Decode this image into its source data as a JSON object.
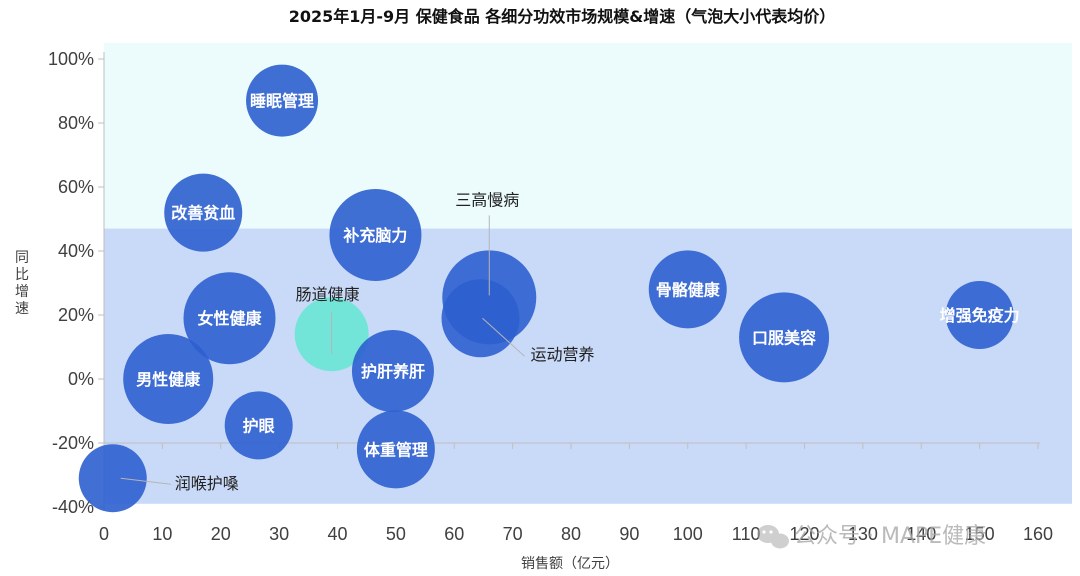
{
  "chart_data": {
    "type": "bubble",
    "title": "2025年1月-9月 保健食品 各细分功效市场规模&增速（气泡大小代表均价）",
    "xlabel": "销售额（亿元）",
    "ylabel": "同比增速",
    "xlim": [
      0,
      165
    ],
    "ylim": [
      -40,
      105
    ],
    "x_ticks": [
      0,
      10,
      20,
      30,
      40,
      50,
      60,
      70,
      80,
      90,
      100,
      110,
      120,
      130,
      140,
      150,
      160
    ],
    "y_ticks": [
      {
        "value": 100,
        "label": "100%"
      },
      {
        "value": 80,
        "label": "80%"
      },
      {
        "value": 60,
        "label": "60%"
      },
      {
        "value": 40,
        "label": "40%"
      },
      {
        "value": 20,
        "label": "20%"
      },
      {
        "value": 0,
        "label": "0%"
      },
      {
        "value": -20,
        "label": "-20%"
      },
      {
        "value": -40,
        "label": "-40%"
      }
    ],
    "bands": [
      {
        "from": 47,
        "to": 105,
        "color": "#ecfcfd"
      },
      {
        "from": -39,
        "to": 47,
        "color": "#c9daf8"
      }
    ],
    "colors": {
      "bubble": "#2e5fcf",
      "highlight": "#6fe6d6",
      "axis": "#bfbfbf"
    },
    "points": [
      {
        "name": "睡眠管理",
        "x": 30.5,
        "y": 87,
        "r": 36,
        "label_pos": "inside"
      },
      {
        "name": "改善贫血",
        "x": 17,
        "y": 52,
        "r": 39,
        "label_pos": "inside"
      },
      {
        "name": "补充脑力",
        "x": 46.5,
        "y": 45,
        "r": 46,
        "label_pos": "inside"
      },
      {
        "name": "三高慢病",
        "x": 66,
        "y": 25.5,
        "r": 47,
        "label_pos": "outside"
      },
      {
        "name": "运动营养",
        "x": 64.5,
        "y": 19,
        "r": 39,
        "label_pos": "outside"
      },
      {
        "name": "骨骼健康",
        "x": 100,
        "y": 28,
        "r": 39,
        "label_pos": "inside"
      },
      {
        "name": "口服美容",
        "x": 116.5,
        "y": 13,
        "r": 45,
        "label_pos": "inside"
      },
      {
        "name": "增强免疫力",
        "x": 150,
        "y": 20,
        "r": 34,
        "label_pos": "inside"
      },
      {
        "name": "女性健康",
        "x": 21.5,
        "y": 19,
        "r": 46,
        "label_pos": "inside"
      },
      {
        "name": "肠道健康",
        "x": 39,
        "y": 14,
        "r": 37,
        "label_pos": "outside",
        "highlight": true
      },
      {
        "name": "男性健康",
        "x": 11,
        "y": 0,
        "r": 45,
        "label_pos": "inside"
      },
      {
        "name": "护肝养肝",
        "x": 49.5,
        "y": 2.5,
        "r": 41,
        "label_pos": "inside"
      },
      {
        "name": "护眼",
        "x": 26.5,
        "y": -14.5,
        "r": 34,
        "label_pos": "inside"
      },
      {
        "name": "体重管理",
        "x": 50,
        "y": -22,
        "r": 39,
        "label_pos": "inside"
      },
      {
        "name": "润喉护嗓",
        "x": 1.5,
        "y": -31,
        "r": 34,
        "label_pos": "outside"
      }
    ]
  },
  "watermark": {
    "text": "公众号 · MAPE健康",
    "icon": "wechat-icon"
  }
}
